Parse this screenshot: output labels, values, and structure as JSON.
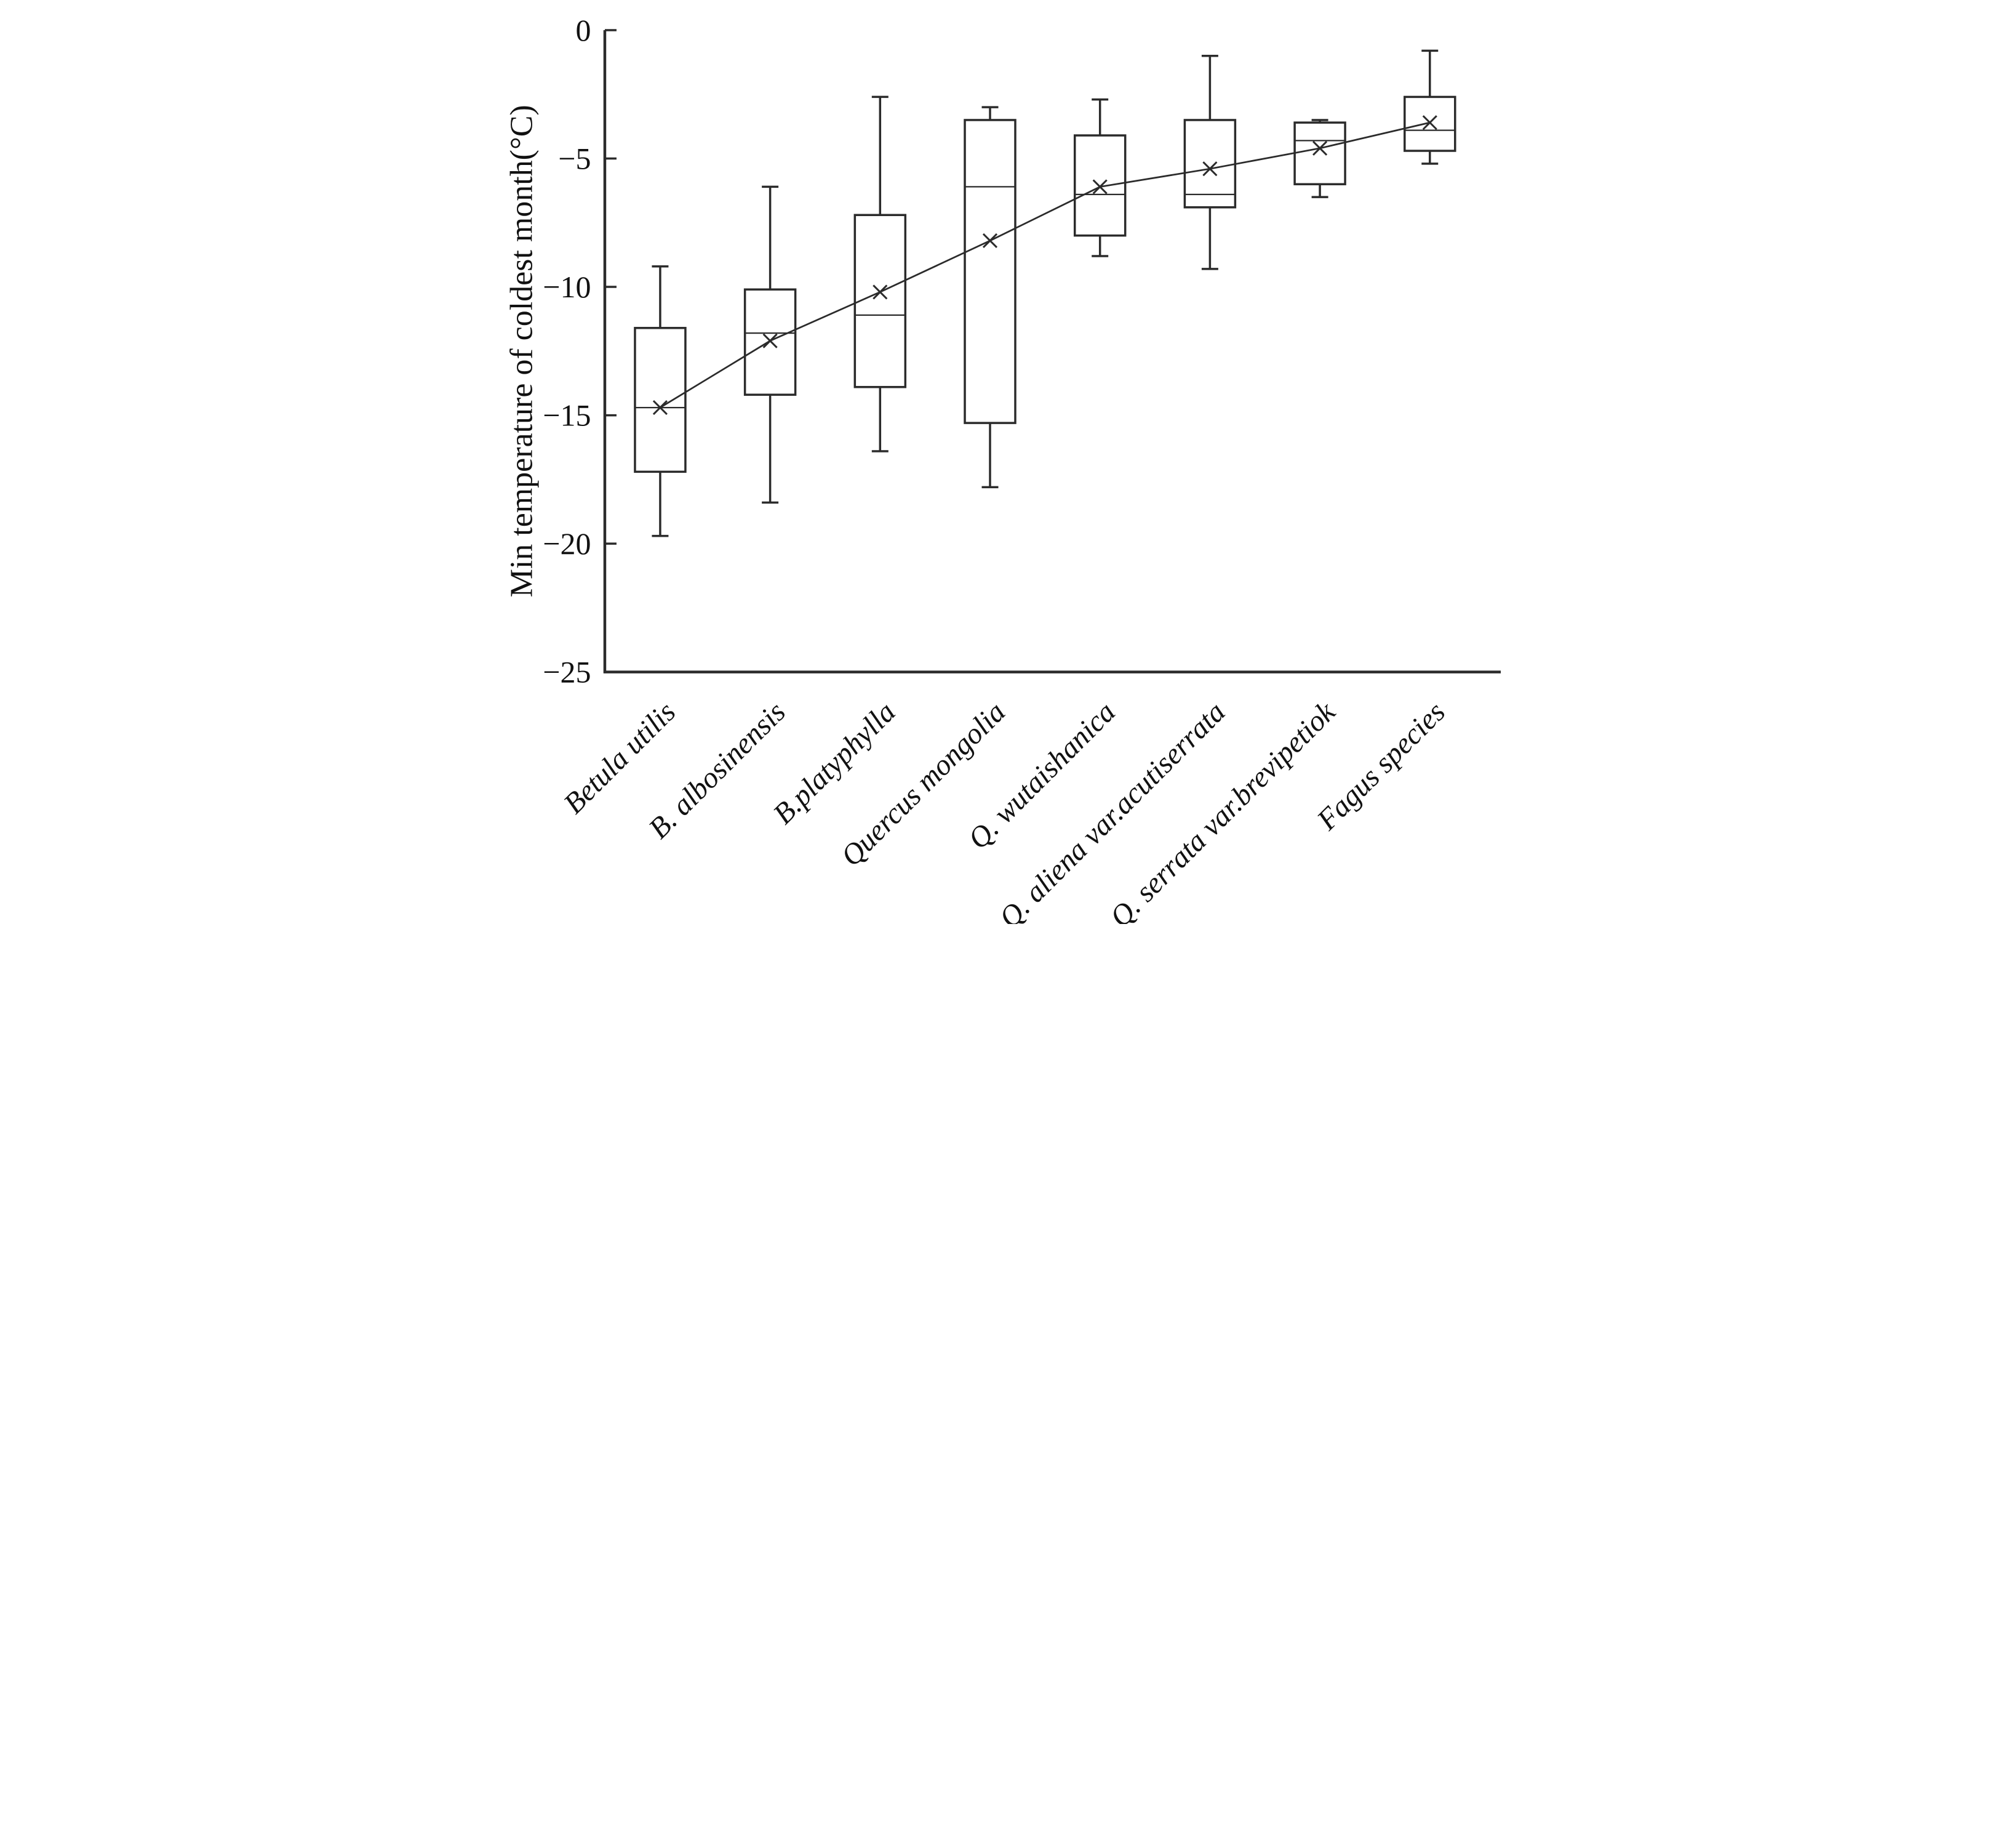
{
  "colors": {
    "line": "#2b2b2b",
    "text": "#111111",
    "background": "#ffffff"
  },
  "chart_data": {
    "type": "box",
    "title": "",
    "xlabel": "",
    "ylabel": "Min temperature of coldest month(°C)",
    "ylim": [
      -25,
      0
    ],
    "grid": false,
    "legend": "none",
    "mean_marker": "x",
    "mean_trend_line": true,
    "yticks": [
      {
        "label": "0",
        "value": 0
      },
      {
        "label": "−5",
        "value": -5
      },
      {
        "label": "−10",
        "value": -10
      },
      {
        "label": "−15",
        "value": -15
      },
      {
        "label": "−20",
        "value": -20
      },
      {
        "label": "−25",
        "value": -25
      }
    ],
    "categories": [
      "Betula utilis",
      "B. albosinensis",
      "B.platyphylla",
      "Quercus mongolia",
      "Q. wutaishanica",
      "Q. aliena var.acutiserrata",
      "Q. serrata var.brevipetiok",
      "Fagus species"
    ],
    "boxes": [
      {
        "label": "Betula utilis",
        "min": -19.7,
        "q1": -17.2,
        "median": -14.7,
        "q3": -11.6,
        "max": -9.2,
        "mean": -14.7
      },
      {
        "label": "B. albosinensis",
        "min": -18.4,
        "q1": -14.2,
        "median": -11.8,
        "q3": -10.1,
        "max": -6.1,
        "mean": -12.1
      },
      {
        "label": "B.platyphylla",
        "min": -16.4,
        "q1": -13.9,
        "median": -11.1,
        "q3": -7.2,
        "max": -2.6,
        "mean": -10.2
      },
      {
        "label": "Quercus mongolia",
        "min": -17.8,
        "q1": -15.3,
        "median": -6.1,
        "q3": -3.5,
        "max": -3.0,
        "mean": -8.2
      },
      {
        "label": "Q. wutaishanica",
        "min": -8.8,
        "q1": -8.0,
        "median": -6.4,
        "q3": -4.1,
        "max": -2.7,
        "mean": -6.1
      },
      {
        "label": "Q. aliena var.acutiserrata",
        "min": -9.3,
        "q1": -6.9,
        "median": -6.4,
        "q3": -3.5,
        "max": -1.0,
        "mean": -5.4
      },
      {
        "label": "Q. serrata var.brevipetiok",
        "min": -6.5,
        "q1": -6.0,
        "median": -4.3,
        "q3": -3.6,
        "max": -3.5,
        "mean": -4.6
      },
      {
        "label": "Fagus species",
        "min": -5.2,
        "q1": -4.7,
        "median": -3.9,
        "q3": -2.6,
        "max": -0.8,
        "mean": -3.6
      }
    ]
  }
}
